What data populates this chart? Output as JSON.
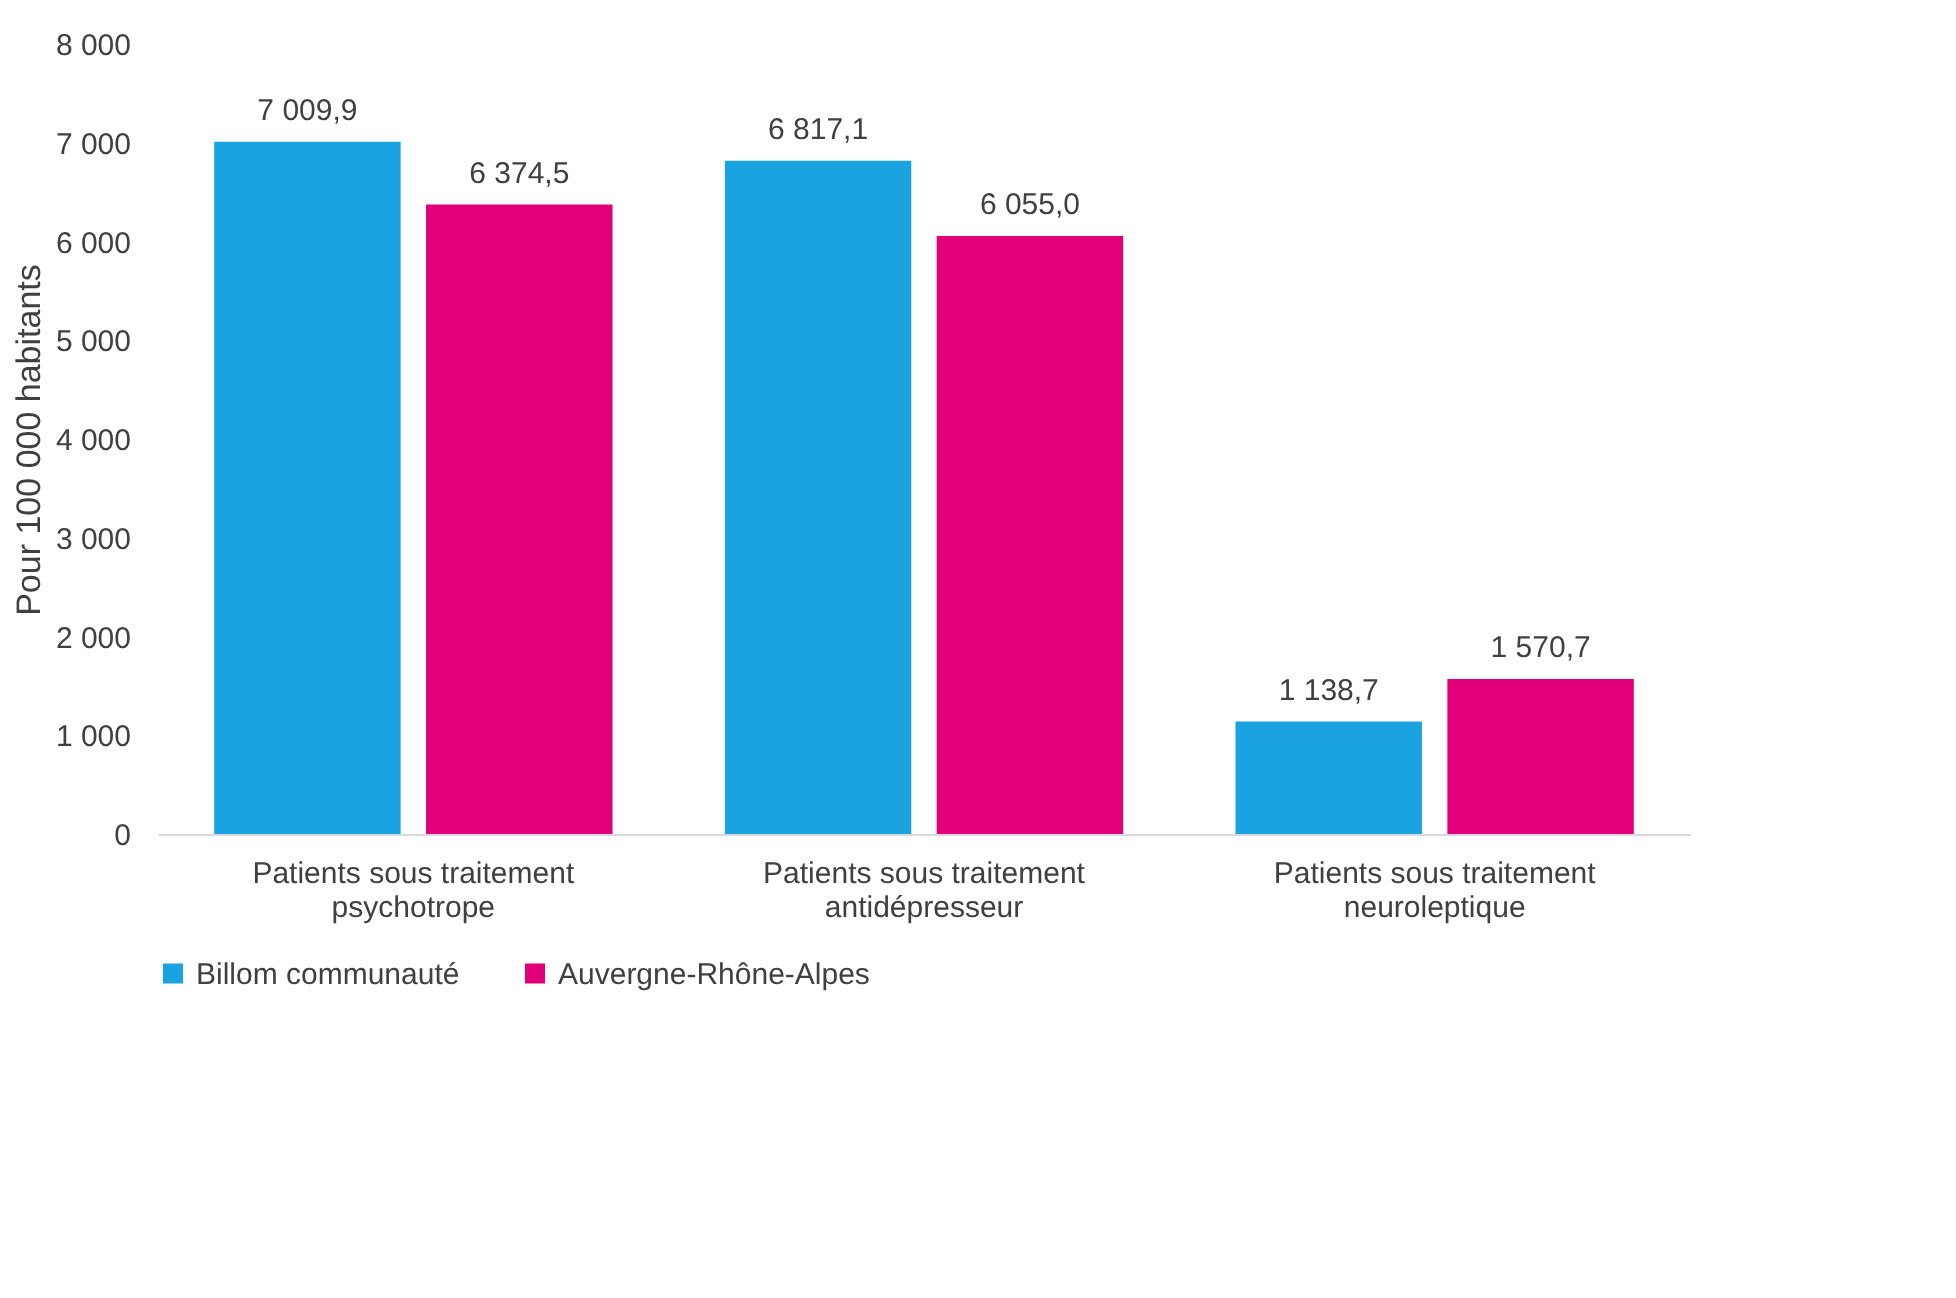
{
  "chart_data": {
    "type": "bar",
    "ylabel": "Pour 100 000 habitants",
    "categories": [
      "Patients sous traitement psychotrope",
      "Patients sous traitement antidépresseur",
      "Patients sous traitement neuroleptique"
    ],
    "series": [
      {
        "name": "Billom communauté",
        "color": "#1aa3e0",
        "values": [
          7009.9,
          6817.1,
          1138.7
        ],
        "value_labels": [
          "7 009,9",
          "6 817,1",
          "1 138,7"
        ]
      },
      {
        "name": "Auvergne-Rhône-Alpes",
        "color": "#e2007a",
        "values": [
          6374.5,
          6055.0,
          1570.7
        ],
        "value_labels": [
          "6 374,5",
          "6 055,0",
          "1 570,7"
        ]
      }
    ],
    "ylim": [
      0,
      8000
    ],
    "yticks": [
      {
        "value": 0,
        "label": "0"
      },
      {
        "value": 1000,
        "label": "1 000"
      },
      {
        "value": 2000,
        "label": "2 000"
      },
      {
        "value": 3000,
        "label": "3 000"
      },
      {
        "value": 4000,
        "label": "4 000"
      },
      {
        "value": 5000,
        "label": "5 000"
      },
      {
        "value": 6000,
        "label": "6 000"
      },
      {
        "value": 7000,
        "label": "7 000"
      },
      {
        "value": 8000,
        "label": "8 000"
      }
    ],
    "grid": false,
    "legend": "bottom"
  }
}
